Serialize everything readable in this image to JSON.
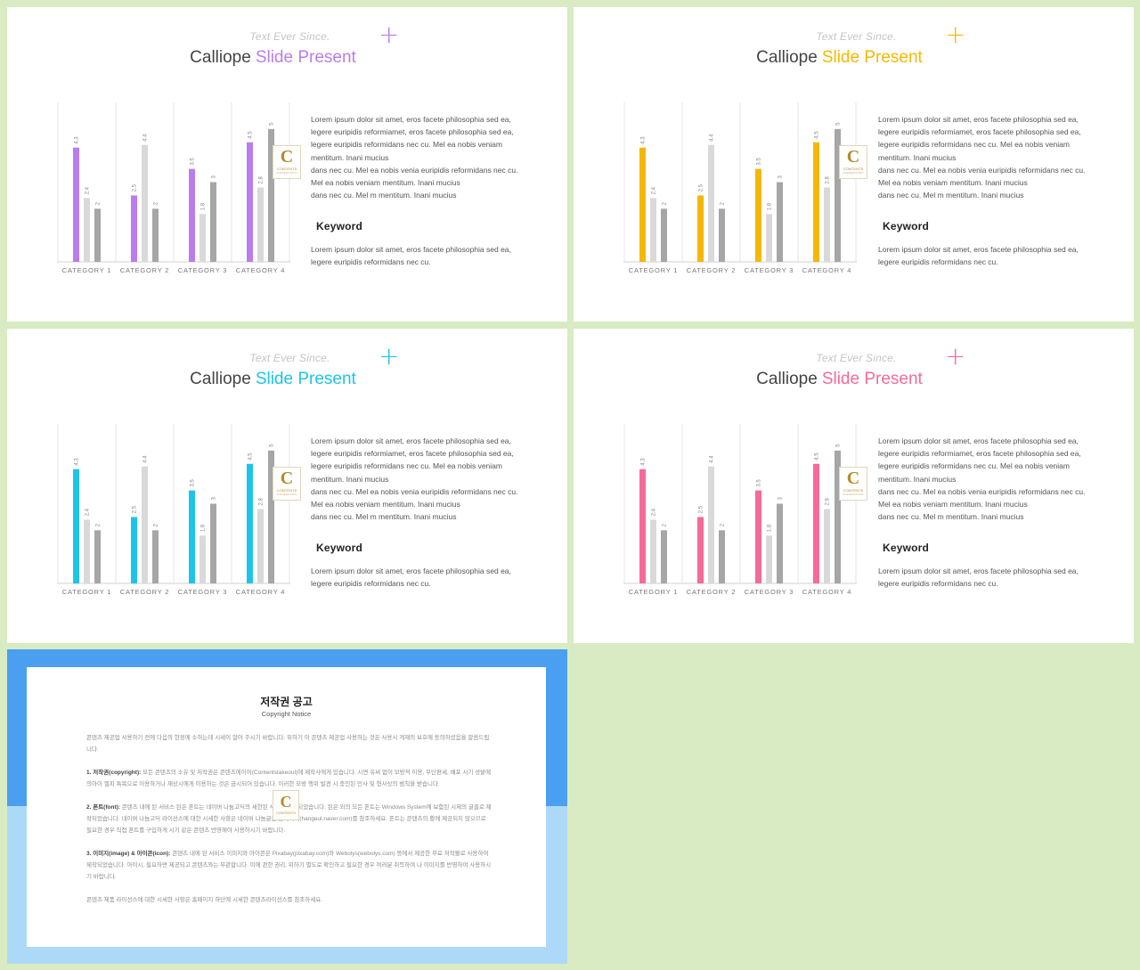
{
  "slides": [
    {
      "subtitle": "Text Ever Since.",
      "plus": "+",
      "title_part1": "Calliope",
      "title_part2": "Slide Present",
      "accent": "#bb7cf0",
      "body_lines": [
        "Lorem ipsum dolor sit amet, eros facete philosophia sed ea,",
        "legere euripidis reformiamet, eros facete philosophia sed ea,",
        "legere euripidis reformidans nec cu. Mel ea nobis veniam",
        "mentitum.  Inani mucius",
        "dans nec cu. Mel ea nobis venia euripidis reformidans nec cu.",
        "Mel ea nobis veniam mentitum.  Inani mucius",
        "dans nec cu. Mel m mentitum.  Inani mucius"
      ],
      "keyword": "Keyword",
      "keyword_lines": [
        "Lorem ipsum dolor sit amet, eros facete philosophia sed ea,",
        "legere euripidis reformidans nec cu."
      ],
      "logo": {
        "letter": "C",
        "line1": "CONTENTS",
        "line2": "PRESENTATION"
      }
    },
    {
      "subtitle": "Text Ever Since.",
      "plus": "+",
      "title_part1": "Calliope",
      "title_part2": "Slide Present",
      "accent": "#f5b800",
      "body_lines": [
        "Lorem ipsum dolor sit amet, eros facete philosophia sed ea,",
        "legere euripidis reformiamet, eros facete philosophia sed ea,",
        "legere euripidis reformidans nec cu. Mel ea nobis veniam",
        "mentitum.  Inani mucius",
        "dans nec cu. Mel ea nobis venia euripidis reformidans nec cu.",
        "Mel ea nobis veniam mentitum.  Inani mucius",
        "dans nec cu. Mel m mentitum.  Inani mucius"
      ],
      "keyword": "Keyword",
      "keyword_lines": [
        "Lorem ipsum dolor sit amet, eros facete philosophia sed ea,",
        "legere euripidis reformidans nec cu."
      ],
      "logo": {
        "letter": "C",
        "line1": "CONTENTS",
        "line2": "PRESENTATION"
      }
    },
    {
      "subtitle": "Text Ever Since.",
      "plus": "+",
      "title_part1": "Calliope",
      "title_part2": "Slide Present",
      "accent": "#1cc4ea",
      "body_lines": [
        "Lorem ipsum dolor sit amet, eros facete philosophia sed ea,",
        "legere euripidis reformiamet, eros facete philosophia sed ea,",
        "legere euripidis reformidans nec cu. Mel ea nobis veniam",
        "mentitum.  Inani mucius",
        "dans nec cu. Mel ea nobis venia euripidis reformidans nec cu.",
        "Mel ea nobis veniam mentitum.  Inani mucius",
        "dans nec cu. Mel m mentitum.  Inani mucius"
      ],
      "keyword": "Keyword",
      "keyword_lines": [
        "Lorem ipsum dolor sit amet, eros facete philosophia sed ea,",
        "legere euripidis reformidans nec cu."
      ],
      "logo": {
        "letter": "C",
        "line1": "CONTENTS",
        "line2": "PRESENTATION"
      }
    },
    {
      "subtitle": "Text Ever Since.",
      "plus": "+",
      "title_part1": "Calliope",
      "title_part2": "Slide Present",
      "accent": "#f56a9a",
      "body_lines": [
        "Lorem ipsum dolor sit amet, eros facete philosophia sed ea,",
        "legere euripidis reformiamet, eros facete philosophia sed ea,",
        "legere euripidis reformidans nec cu. Mel ea nobis veniam",
        "mentitum.  Inani mucius",
        "dans nec cu. Mel ea nobis venia euripidis reformidans nec cu.",
        "Mel ea nobis veniam mentitum.  Inani mucius",
        "dans nec cu. Mel m mentitum.  Inani mucius"
      ],
      "keyword": "Keyword",
      "keyword_lines": [
        "Lorem ipsum dolor sit amet, eros facete philosophia sed ea,",
        "legere euripidis reformidans nec cu."
      ],
      "logo": {
        "letter": "C",
        "line1": "CONTENTS",
        "line2": "PRESENTATION"
      }
    }
  ],
  "chart_data": {
    "type": "bar",
    "categories": [
      "CATEGORY 1",
      "CATEGORY 2",
      "CATEGORY 3",
      "CATEGORY 4"
    ],
    "series": [
      {
        "values": [
          4.3,
          2.5,
          3.5,
          4.5
        ]
      },
      {
        "values": [
          2.4,
          4.4,
          1.8,
          2.8
        ]
      },
      {
        "values": [
          2,
          2,
          3,
          5
        ]
      }
    ],
    "ylim": [
      0,
      6
    ],
    "series_colors": [
      "accent",
      "#d9d9d9",
      "#a6a6a6"
    ]
  },
  "copyright": {
    "title": "저작권 공고",
    "subtitle": "Copyright Notice",
    "intro": "콘텐츠 제공업 사용하기 전에 다음의 한정에 소하는데 시세이 알아 주시기 바랍니다. 위하기 이 콘텐츠 제공업 사용하는 것은 사용시 게재의 보호에 동의하셨음을 말씀드립니다.",
    "p1_head": "1. 저작권(copyright):",
    "p1": "모든 콘텐츠의 소유 및 저작권은 콘텐츠에이어(Contentstakeout)에 제작사에게 있습니다. 시면 유써 없이 모방적 이용, 무단편세, 배포 시기 성밭에 의아이 엘피 특목으로 이용하거나 재상시에게 이용하는 것은 금시되어 있습니다. 이러한 모방 행위 발견 시 충인된 민사 및 형사상의 범칙을 받습니다.",
    "p2_head": "2. 폰트(font):",
    "p2": "콘텐츠 내에 된 서비스 된은 폰트는 네이버 나눔고딕의 세한된 사이어 제작되었습니다. 된은 외의 모든 폰트는 Windows System에 보함된 시제의 글꼴로 제작되었습니다. 네이버 나눔고딕 라이선스에 대한 시세한 사항은 네이버 나눔글꼴 홈페이지(hangeul.naver.com)를 참조하세요. 폰트는 콘텐츠의 활에 제공되지 않으므로 필요한 경우 직접 폰트를 구입하게 시기 같은 콘텐츠 반영해야 사용하시기 바랍니다.",
    "p3_head": "3. 이미지(image) & 아이콘(icon):",
    "p3": "콘텐츠 내에 된 서비스 이미지와 아이콘은 Pixabay(pixabay.com)와 Webolys(webolys.com) 등에서 제공한 무료 저작물로 사용하여 제작되었습니다. 아이시, 필요하면 제공되고 콘텐츠와는 무관합니다. 이에 관한 권리, 위하기 별도로 확인하고 필요한 경우 여러분 취득하여 나 이미지를 반영하여 사용하시기 바랍니다.",
    "outro": "콘텐츠 제품 라이선스에 대한 시세한 사항은 홈페이지 하단에 시세한 콘텐츠라이선스를 참조하세요.",
    "logo_letter": "C",
    "logo_line": "CONTENTS"
  }
}
